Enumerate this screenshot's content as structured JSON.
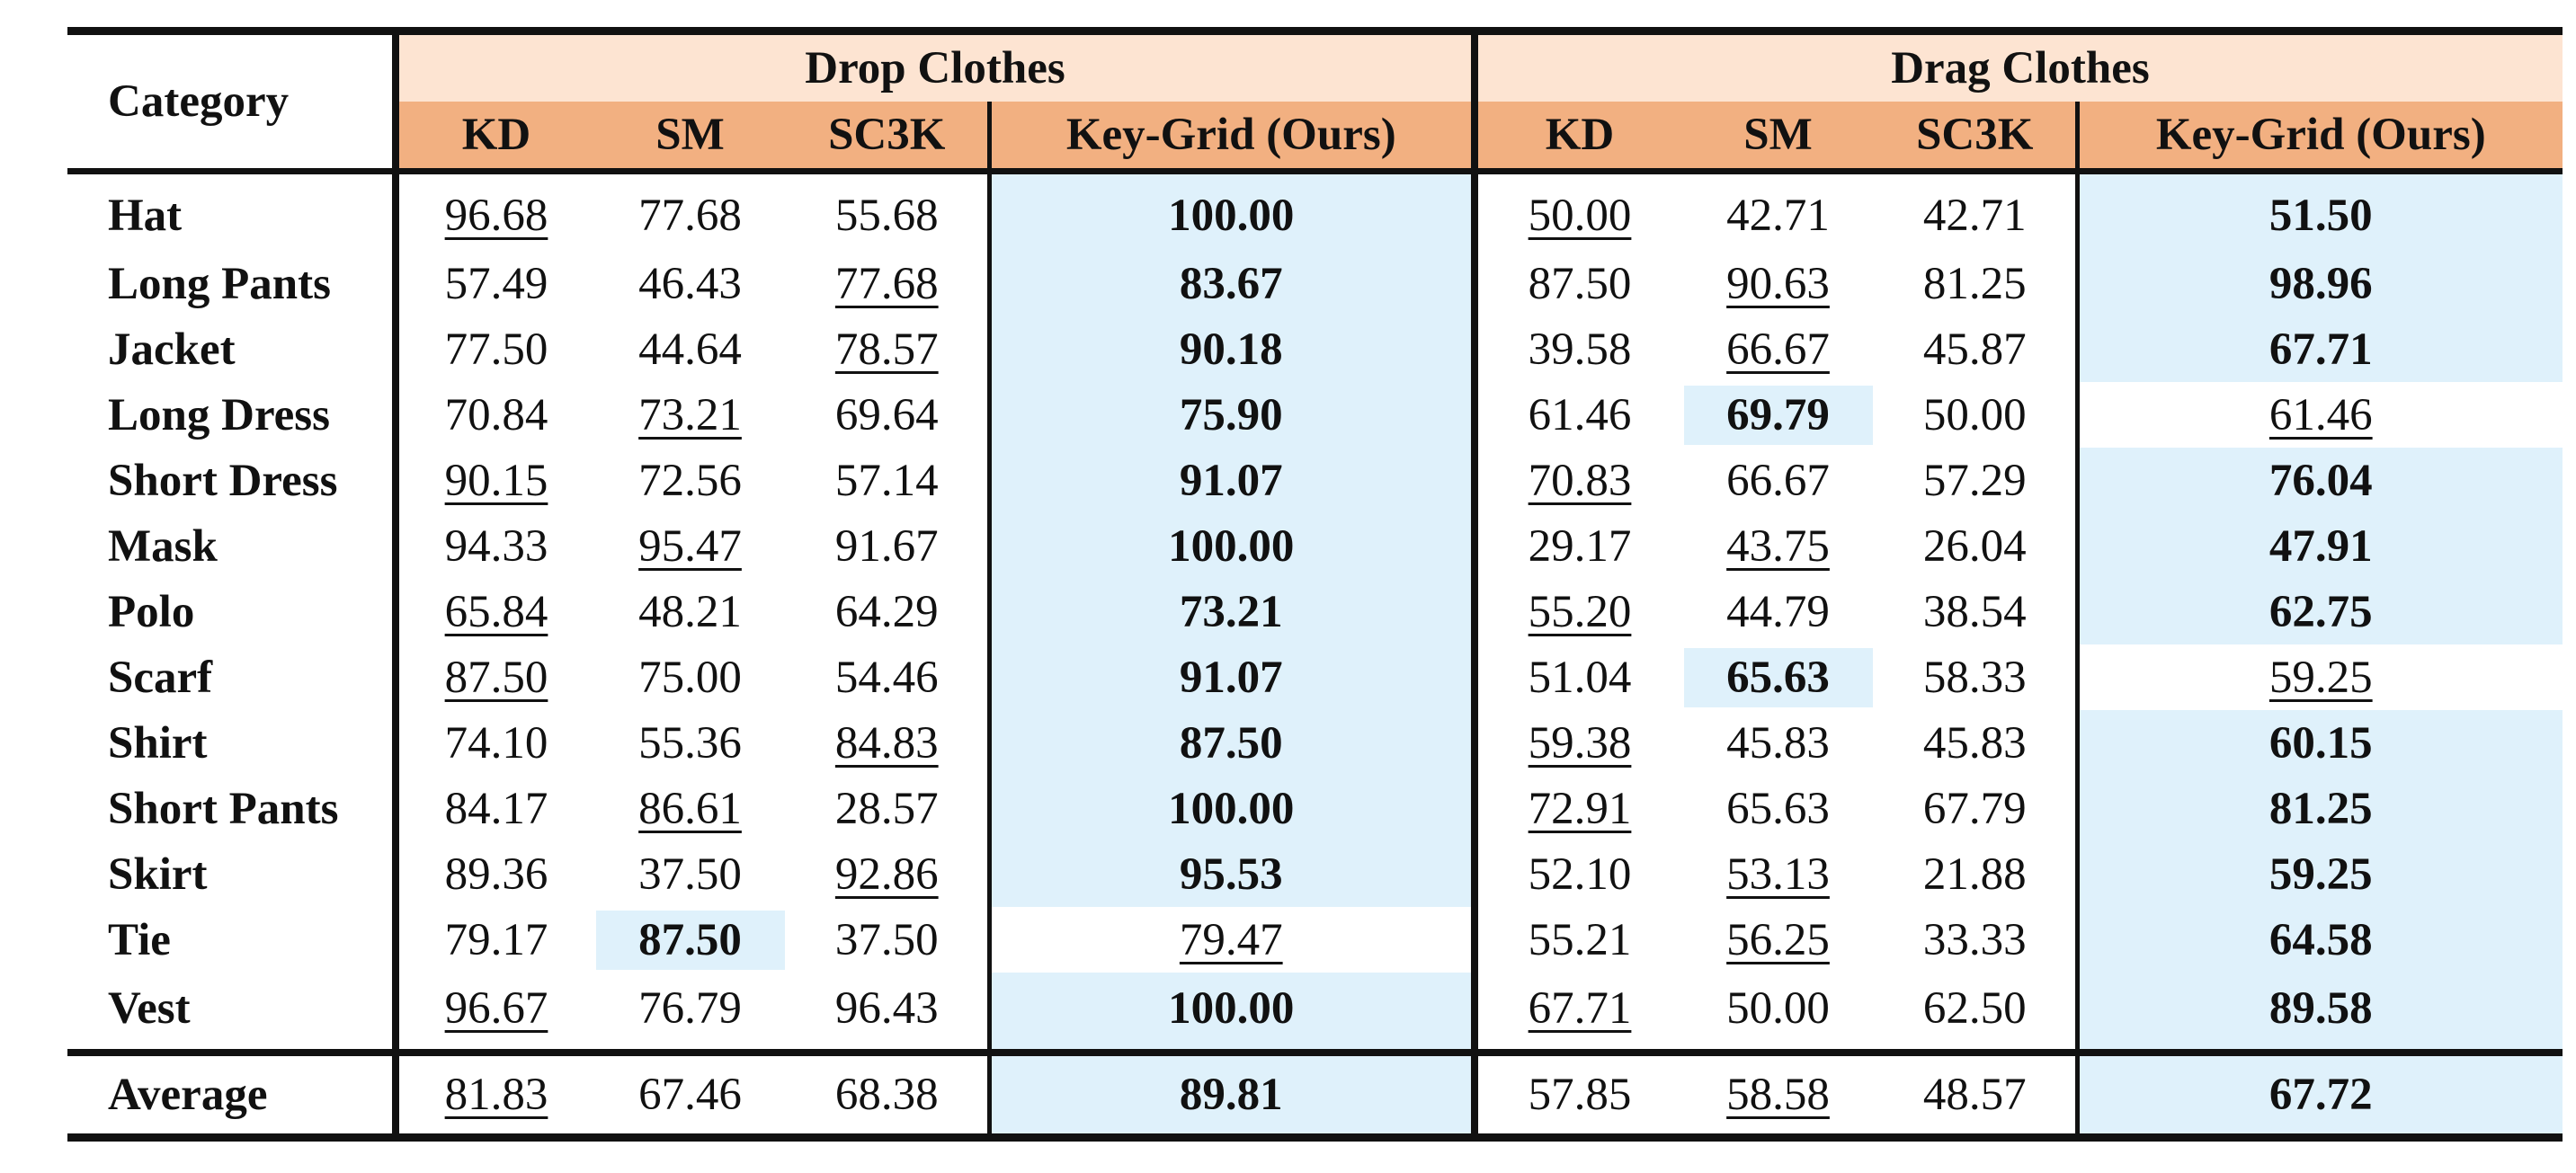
{
  "table": {
    "category_header": "Category",
    "groups": [
      "Drop Clothes",
      "Drag Clothes"
    ],
    "columns": [
      "KD",
      "SM",
      "SC3K",
      "Key-Grid (Ours)",
      "KD",
      "SM",
      "SC3K",
      "Key-Grid (Ours)"
    ],
    "rows": [
      {
        "category": "Hat",
        "values": [
          "96.68",
          "77.68",
          "55.68",
          "100.00",
          "50.00",
          "42.71",
          "42.71",
          "51.50"
        ]
      },
      {
        "category": "Long Pants",
        "values": [
          "57.49",
          "46.43",
          "77.68",
          "83.67",
          "87.50",
          "90.63",
          "81.25",
          "98.96"
        ]
      },
      {
        "category": "Jacket",
        "values": [
          "77.50",
          "44.64",
          "78.57",
          "90.18",
          "39.58",
          "66.67",
          "45.87",
          "67.71"
        ]
      },
      {
        "category": "Long Dress",
        "values": [
          "70.84",
          "73.21",
          "69.64",
          "75.90",
          "61.46",
          "69.79",
          "50.00",
          "61.46"
        ]
      },
      {
        "category": "Short Dress",
        "values": [
          "90.15",
          "72.56",
          "57.14",
          "91.07",
          "70.83",
          "66.67",
          "57.29",
          "76.04"
        ]
      },
      {
        "category": "Mask",
        "values": [
          "94.33",
          "95.47",
          "91.67",
          "100.00",
          "29.17",
          "43.75",
          "26.04",
          "47.91"
        ]
      },
      {
        "category": "Polo",
        "values": [
          "65.84",
          "48.21",
          "64.29",
          "73.21",
          "55.20",
          "44.79",
          "38.54",
          "62.75"
        ]
      },
      {
        "category": "Scarf",
        "values": [
          "87.50",
          "75.00",
          "54.46",
          "91.07",
          "51.04",
          "65.63",
          "58.33",
          "59.25"
        ]
      },
      {
        "category": "Shirt",
        "values": [
          "74.10",
          "55.36",
          "84.83",
          "87.50",
          "59.38",
          "45.83",
          "45.83",
          "60.15"
        ]
      },
      {
        "category": "Short Pants",
        "values": [
          "84.17",
          "86.61",
          "28.57",
          "100.00",
          "72.91",
          "65.63",
          "67.79",
          "81.25"
        ]
      },
      {
        "category": "Skirt",
        "values": [
          "89.36",
          "37.50",
          "92.86",
          "95.53",
          "52.10",
          "53.13",
          "21.88",
          "59.25"
        ]
      },
      {
        "category": "Tie",
        "values": [
          "79.17",
          "87.50",
          "37.50",
          "79.47",
          "55.21",
          "56.25",
          "33.33",
          "64.58"
        ]
      },
      {
        "category": "Vest",
        "values": [
          "96.67",
          "76.79",
          "96.43",
          "100.00",
          "67.71",
          "50.00",
          "62.50",
          "89.58"
        ]
      }
    ],
    "average": {
      "category": "Average",
      "values": [
        "81.83",
        "67.46",
        "68.38",
        "89.81",
        "57.85",
        "58.58",
        "48.57",
        "67.72"
      ]
    },
    "bold_cells": [
      [
        0,
        3
      ],
      [
        0,
        7
      ],
      [
        1,
        3
      ],
      [
        1,
        7
      ],
      [
        2,
        3
      ],
      [
        2,
        7
      ],
      [
        3,
        3
      ],
      [
        3,
        5
      ],
      [
        4,
        3
      ],
      [
        4,
        7
      ],
      [
        5,
        3
      ],
      [
        5,
        7
      ],
      [
        6,
        3
      ],
      [
        6,
        7
      ],
      [
        7,
        3
      ],
      [
        7,
        5
      ],
      [
        8,
        3
      ],
      [
        8,
        7
      ],
      [
        9,
        3
      ],
      [
        9,
        7
      ],
      [
        10,
        3
      ],
      [
        10,
        7
      ],
      [
        11,
        1
      ],
      [
        11,
        7
      ],
      [
        12,
        3
      ],
      [
        12,
        7
      ]
    ],
    "underlined_cells": [
      [
        0,
        0
      ],
      [
        0,
        4
      ],
      [
        1,
        2
      ],
      [
        1,
        5
      ],
      [
        2,
        2
      ],
      [
        2,
        5
      ],
      [
        3,
        1
      ],
      [
        3,
        7
      ],
      [
        4,
        0
      ],
      [
        4,
        4
      ],
      [
        5,
        1
      ],
      [
        5,
        5
      ],
      [
        6,
        0
      ],
      [
        6,
        4
      ],
      [
        7,
        0
      ],
      [
        7,
        7
      ],
      [
        8,
        2
      ],
      [
        8,
        4
      ],
      [
        9,
        1
      ],
      [
        9,
        4
      ],
      [
        10,
        2
      ],
      [
        10,
        5
      ],
      [
        11,
        3
      ],
      [
        11,
        5
      ],
      [
        12,
        0
      ],
      [
        12,
        4
      ]
    ],
    "average_bold": [
      3,
      7
    ],
    "average_underlined": [
      0,
      5
    ],
    "colors": {
      "group_header_bg": "#fde4d2",
      "sub_header_bg": "#f2b081",
      "highlight_bg": "#dff1fb"
    }
  }
}
